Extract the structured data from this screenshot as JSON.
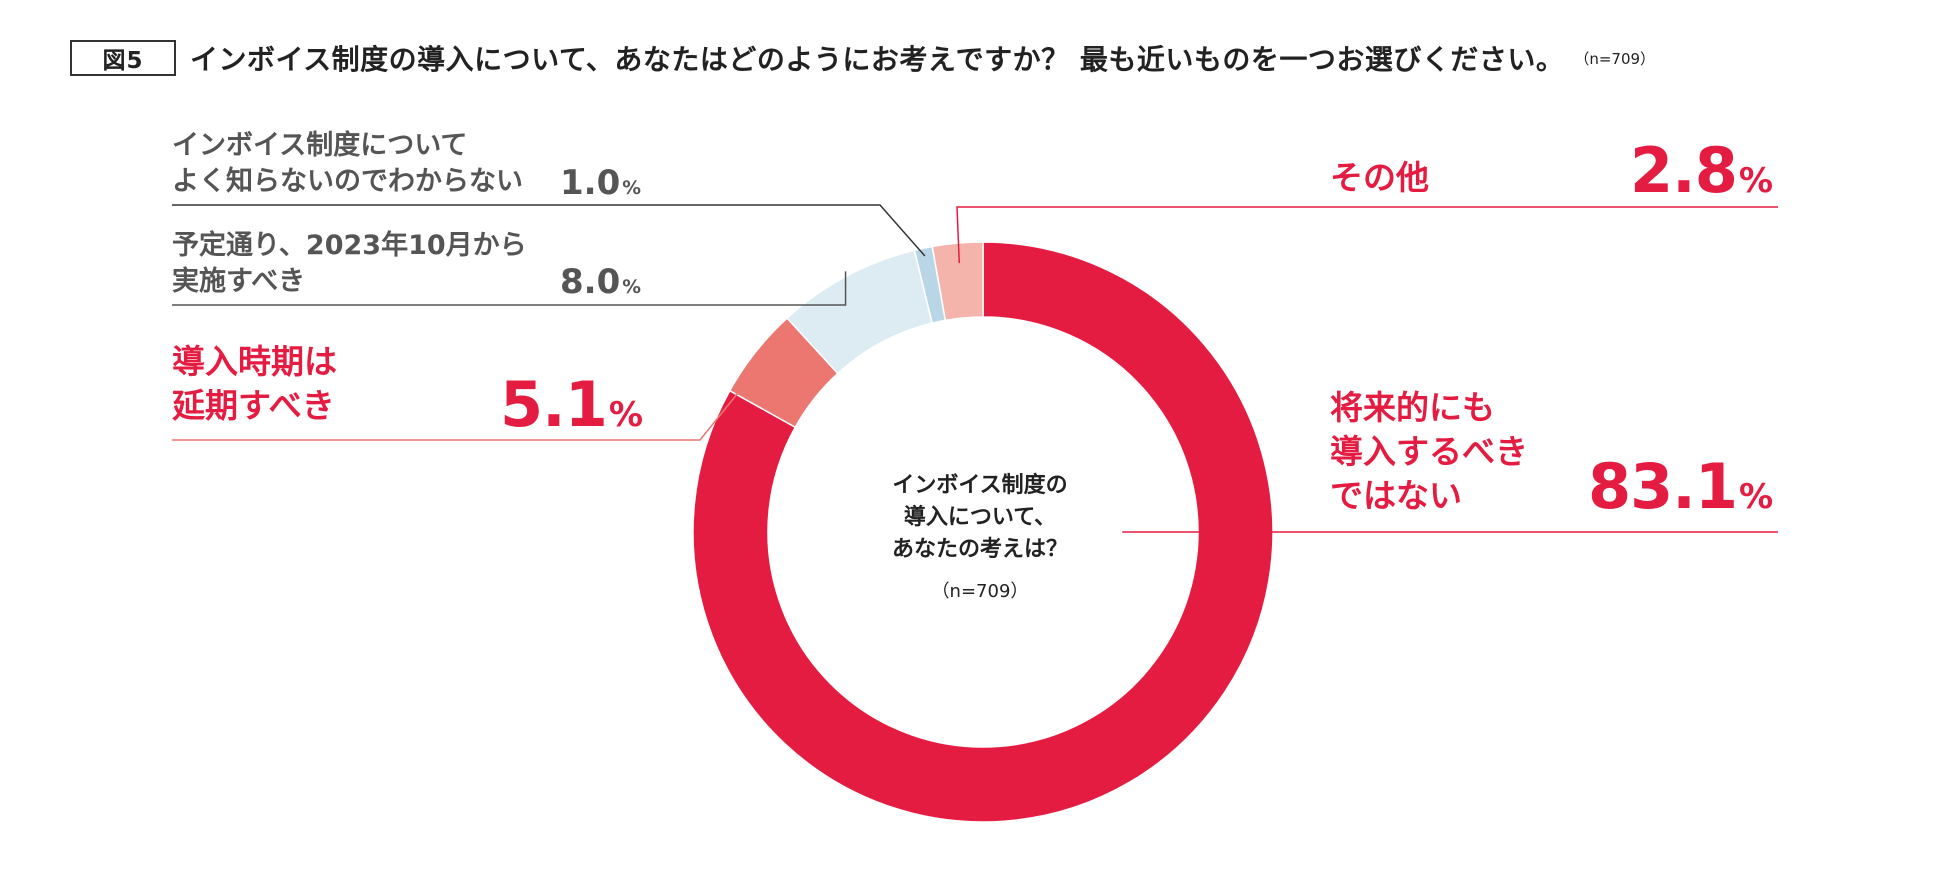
{
  "title": {
    "figure_label": "図5",
    "question": "インボイス制度の導入について、あなたはどのようにお考えですか？ 最も近いものを一つお選びください。",
    "sample": "（n=709）"
  },
  "center": {
    "line1": "インボイス制度の",
    "line2": "導入について、",
    "line3": "あなたの考えは？",
    "sample": "（n=709）"
  },
  "chart_data": {
    "type": "pie",
    "variant": "donut",
    "unit": "%",
    "slices": [
      {
        "label": "将来的にも導入するべきではない",
        "label_lines": [
          "将来的にも",
          "導入するべき",
          "ではない"
        ],
        "value": 83.1,
        "value_text": "83.1",
        "color": "#e51c41"
      },
      {
        "label": "導入時期は延期すべき",
        "label_lines": [
          "導入時期は",
          "延期すべき"
        ],
        "value": 5.1,
        "value_text": "5.1",
        "color": "#ec7670"
      },
      {
        "label": "予定通り、2023年10月から実施すべき",
        "label_lines": [
          "予定通り、2023年10月から",
          "実施すべき"
        ],
        "value": 8.0,
        "value_text": "8.0",
        "color": "#ddebf3"
      },
      {
        "label": "インボイス制度についてよく知らないのでわからない",
        "label_lines": [
          "インボイス制度について",
          "よく知らないのでわからない"
        ],
        "value": 1.0,
        "value_text": "1.0",
        "color": "#b9d6e7"
      },
      {
        "label": "その他",
        "label_lines": [
          "その他"
        ],
        "value": 2.8,
        "value_text": "2.8",
        "color": "#f4b3ab"
      }
    ]
  }
}
